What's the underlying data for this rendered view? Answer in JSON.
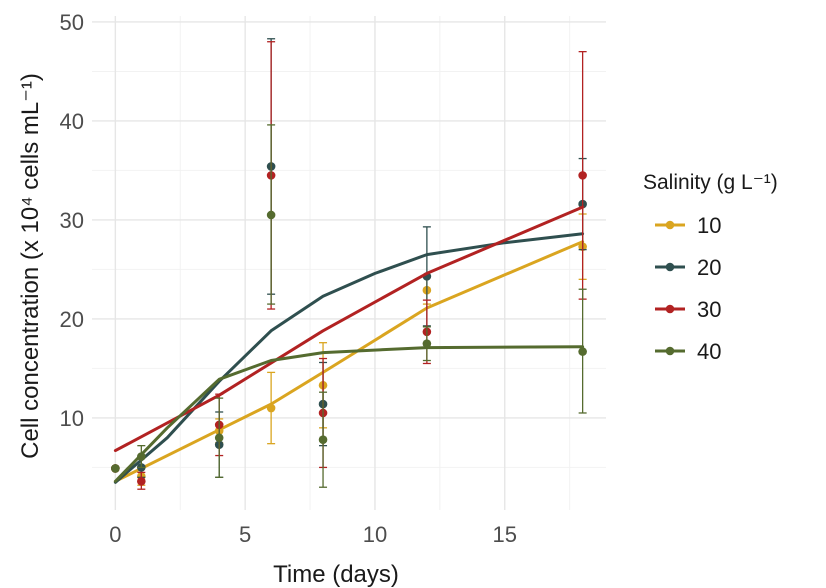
{
  "chart_data": {
    "type": "line",
    "xlabel": "Time (days)",
    "ylabel": "Cell concentration (x 10⁴ cells mL⁻¹)",
    "xlim": [
      -0.9,
      18.9
    ],
    "ylim": [
      0.7,
      50.6
    ],
    "x_ticks": [
      0,
      5,
      10,
      15
    ],
    "y_ticks": [
      10,
      20,
      30,
      40,
      50
    ],
    "grid": true,
    "legend_title": "Salinity (g L⁻¹)",
    "legend_position": "right",
    "series": [
      {
        "name": "10",
        "color": "#DAA520",
        "points": [
          {
            "x": 0,
            "y": 4.9,
            "lo": 4.9,
            "hi": 4.9
          },
          {
            "x": 1,
            "y": 4.1,
            "lo": 3.2,
            "hi": 5.0
          },
          {
            "x": 4,
            "y": 8.7,
            "lo": 7.5,
            "hi": 9.9
          },
          {
            "x": 6,
            "y": 11.0,
            "lo": 7.4,
            "hi": 14.6
          },
          {
            "x": 8,
            "y": 13.3,
            "lo": 9.0,
            "hi": 17.6
          },
          {
            "x": 12,
            "y": 22.9,
            "lo": 21.5,
            "hi": 24.3
          },
          {
            "x": 18,
            "y": 27.3,
            "lo": 24.0,
            "hi": 30.6
          }
        ],
        "fit": [
          [
            0,
            3.6
          ],
          [
            4,
            8.8
          ],
          [
            6,
            11.4
          ],
          [
            8,
            14.6
          ],
          [
            12,
            21.1
          ],
          [
            18,
            27.8
          ]
        ]
      },
      {
        "name": "20",
        "color": "#2F4F4F",
        "points": [
          {
            "x": 0,
            "y": 4.9,
            "lo": 4.9,
            "hi": 4.9
          },
          {
            "x": 1,
            "y": 5.0,
            "lo": 4.0,
            "hi": 6.0
          },
          {
            "x": 4,
            "y": 7.3,
            "lo": 4.0,
            "hi": 10.6
          },
          {
            "x": 6,
            "y": 35.4,
            "lo": 22.5,
            "hi": 48.3
          },
          {
            "x": 8,
            "y": 11.4,
            "lo": 7.2,
            "hi": 15.6
          },
          {
            "x": 12,
            "y": 24.3,
            "lo": 19.3,
            "hi": 29.3
          },
          {
            "x": 18,
            "y": 31.6,
            "lo": 27.0,
            "hi": 36.2
          }
        ],
        "fit": [
          [
            0,
            3.5
          ],
          [
            2,
            8.0
          ],
          [
            4,
            13.7
          ],
          [
            6,
            18.8
          ],
          [
            8,
            22.3
          ],
          [
            10,
            24.6
          ],
          [
            12,
            26.5
          ],
          [
            15,
            27.7
          ],
          [
            18,
            28.6
          ]
        ]
      },
      {
        "name": "30",
        "color": "#B22222",
        "points": [
          {
            "x": 0,
            "y": 4.9,
            "lo": 4.9,
            "hi": 4.9
          },
          {
            "x": 1,
            "y": 3.6,
            "lo": 2.8,
            "hi": 4.5
          },
          {
            "x": 4,
            "y": 9.3,
            "lo": 6.2,
            "hi": 12.4
          },
          {
            "x": 6,
            "y": 34.5,
            "lo": 21.0,
            "hi": 48.0
          },
          {
            "x": 8,
            "y": 10.5,
            "lo": 5.0,
            "hi": 16.0
          },
          {
            "x": 12,
            "y": 18.7,
            "lo": 15.5,
            "hi": 21.9
          },
          {
            "x": 18,
            "y": 34.5,
            "lo": 22.0,
            "hi": 47.0
          }
        ],
        "fit": [
          [
            0,
            6.7
          ],
          [
            4,
            12.3
          ],
          [
            8,
            18.8
          ],
          [
            12,
            24.6
          ],
          [
            18,
            31.3
          ]
        ]
      },
      {
        "name": "40",
        "color": "#556B2F",
        "points": [
          {
            "x": 0,
            "y": 4.9,
            "lo": 4.9,
            "hi": 4.9
          },
          {
            "x": 1,
            "y": 6.1,
            "lo": 5.0,
            "hi": 7.2
          },
          {
            "x": 4,
            "y": 8.0,
            "lo": 4.0,
            "hi": 12.0
          },
          {
            "x": 6,
            "y": 30.5,
            "lo": 21.5,
            "hi": 39.6
          },
          {
            "x": 8,
            "y": 7.8,
            "lo": 3.0,
            "hi": 12.6
          },
          {
            "x": 12,
            "y": 17.5,
            "lo": 15.8,
            "hi": 19.2
          },
          {
            "x": 18,
            "y": 16.7,
            "lo": 10.5,
            "hi": 23.0
          }
        ],
        "fit": [
          [
            0,
            3.6
          ],
          [
            2,
            9.0
          ],
          [
            4,
            13.9
          ],
          [
            6,
            15.8
          ],
          [
            8,
            16.6
          ],
          [
            12,
            17.1
          ],
          [
            18,
            17.2
          ]
        ]
      }
    ]
  }
}
